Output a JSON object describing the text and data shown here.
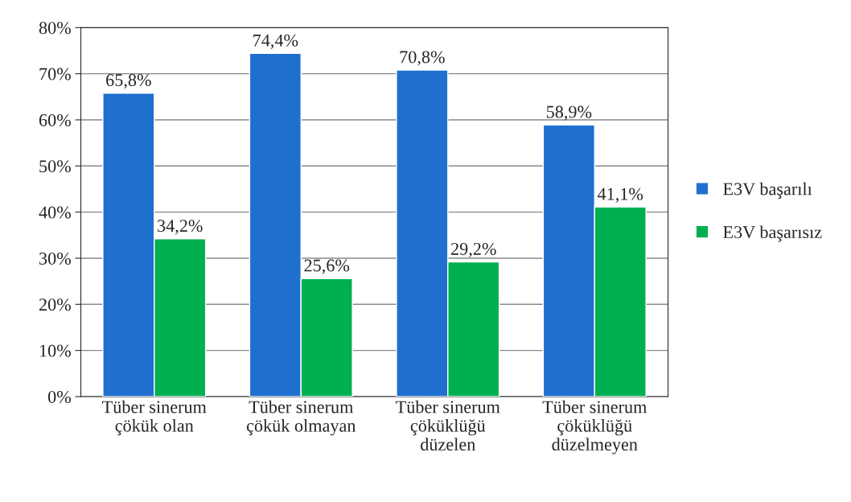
{
  "chart_data": {
    "type": "bar",
    "categories": [
      "Tüber sinerum\nçökük olan",
      "Tüber sinerum\nçökük olmayan",
      "Tüber sinerum\nçöküklüğü\ndüzelen",
      "Tüber sinerum\nçöküklüğü\ndüzelmeyen"
    ],
    "series": [
      {
        "name": "E3V başarılı",
        "color": "#1f6fcf",
        "values": [
          65.8,
          74.4,
          70.8,
          58.9
        ],
        "value_labels": [
          "65,8%",
          "74,4%",
          "70,8%",
          "58,9%"
        ]
      },
      {
        "name": "E3V başarısız",
        "color": "#00b050",
        "values": [
          34.2,
          25.6,
          29.2,
          41.1
        ],
        "value_labels": [
          "34,2%",
          "25,6%",
          "29,2%",
          "41,1%"
        ]
      }
    ],
    "ylim": [
      0,
      80
    ],
    "yticks": [
      {
        "value": 0,
        "label": "0%"
      },
      {
        "value": 10,
        "label": "10%"
      },
      {
        "value": 20,
        "label": "20%"
      },
      {
        "value": 30,
        "label": "30%"
      },
      {
        "value": 40,
        "label": "40%"
      },
      {
        "value": 50,
        "label": "50%"
      },
      {
        "value": 60,
        "label": "60%"
      },
      {
        "value": 70,
        "label": "70%"
      },
      {
        "value": 80,
        "label": "80%"
      }
    ],
    "grid": "y",
    "legend": "right"
  }
}
